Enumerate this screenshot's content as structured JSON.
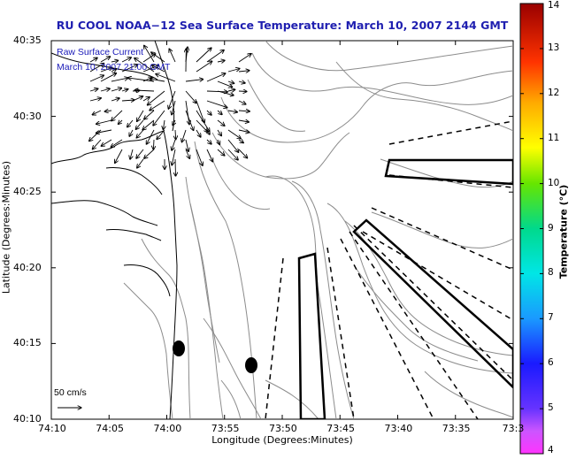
{
  "title": "RU COOL  NOAA−12  Sea Surface Temperature:  March 10, 2007 2144 GMT",
  "axes": {
    "xlabel": "Longitude (Degrees:Minutes)",
    "ylabel": "Latitude (Degrees:Minutes)",
    "x_ticks": [
      "74:10",
      "74:05",
      "74:00",
      "73:55",
      "73:50",
      "73:45",
      "73:40",
      "73:35",
      "73:3"
    ],
    "y_ticks": [
      "40:35",
      "40:30",
      "40:25",
      "40:20",
      "40:15",
      "40:10"
    ]
  },
  "annotation": {
    "line1": "Raw Surface Current",
    "line2": "March 10, 2007 21:00 GMT"
  },
  "scale_label": "50 cm/s",
  "colorbar": {
    "label": "Temperature (°C)",
    "min": 4,
    "max": 14,
    "ticks": [
      "14",
      "13",
      "12",
      "11",
      "10",
      "9",
      "8",
      "7",
      "6",
      "5",
      "4"
    ]
  },
  "colors": {
    "title": "#1f1fb0",
    "annotation": "#1a1ab8",
    "contour": "#8c8c8c",
    "coast": "#000000"
  },
  "chart_data": {
    "type": "map",
    "title": "RU COOL  NOAA−12  Sea Surface Temperature:  March 10, 2007 2144 GMT",
    "xlabel": "Longitude (Degrees:Minutes)",
    "ylabel": "Latitude (Degrees:Minutes)",
    "x_range_deg_W": [
      74.1667,
      73.5
    ],
    "y_range_deg_N": [
      40.1667,
      40.5833
    ],
    "colorbar": {
      "label": "Temperature (°C)",
      "range": [
        4,
        14
      ]
    },
    "layers": [
      "bathymetry contours",
      "coastline",
      "raw surface current vectors",
      "shipping lanes",
      "disposal sites"
    ],
    "vector_scale": "50 cm/s"
  }
}
